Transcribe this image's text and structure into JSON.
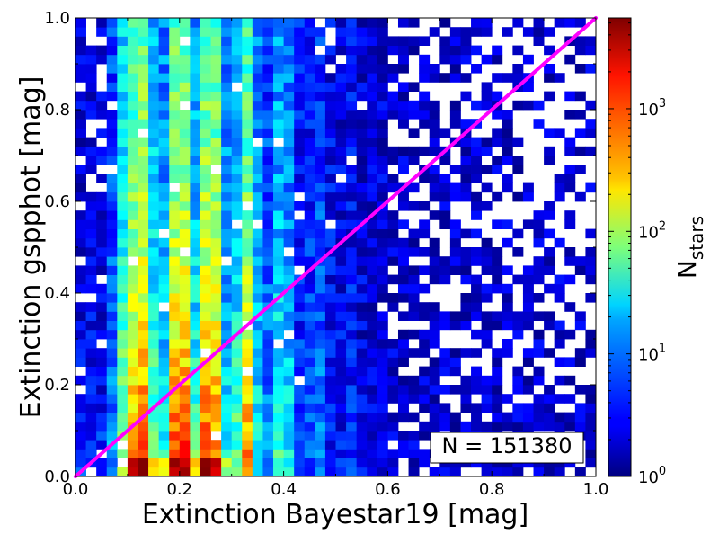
{
  "chart_data": {
    "type": "heatmap",
    "title": "",
    "xlabel": "Extinction Bayestar19 [mag]",
    "ylabel": "Extinction gspphot [mag]",
    "xlim": [
      0,
      1
    ],
    "ylim": [
      0,
      1
    ],
    "xticks": [
      "0.0",
      "0.2",
      "0.4",
      "0.6",
      "0.8",
      "1.0"
    ],
    "yticks": [
      "0.0",
      "0.2",
      "0.4",
      "0.6",
      "0.8",
      "1.0"
    ],
    "bins": [
      50,
      50
    ],
    "annotation": "N = 151380",
    "reference_line": {
      "x": [
        0,
        1
      ],
      "y": [
        0,
        1
      ],
      "color": "#ff00ff"
    },
    "colorbar": {
      "label_main": "N",
      "label_sub": "stars",
      "scale": "log",
      "range": [
        1,
        5500
      ],
      "ticks": [
        {
          "base": "10",
          "exp": "0",
          "value": 1
        },
        {
          "base": "10",
          "exp": "1",
          "value": 10
        },
        {
          "base": "10",
          "exp": "2",
          "value": 100
        },
        {
          "base": "10",
          "exp": "3",
          "value": 1000
        }
      ],
      "colormap": "jet"
    }
  }
}
